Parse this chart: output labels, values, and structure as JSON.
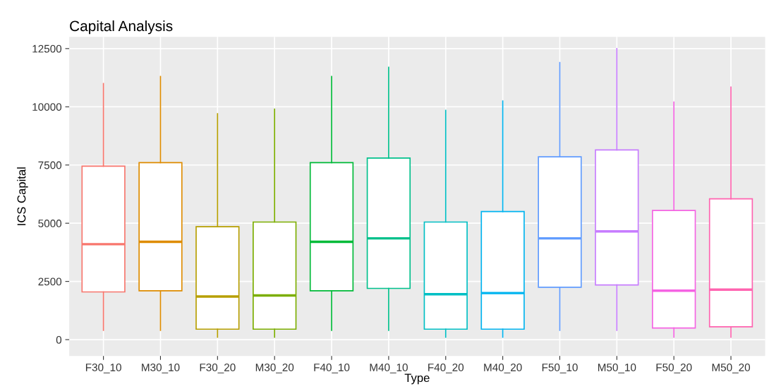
{
  "chart_data": {
    "type": "box",
    "title": "Capital Analysis",
    "xlabel": "Type",
    "ylabel": "ICS Capital",
    "categories": [
      "F30_10",
      "M30_10",
      "F30_20",
      "M30_20",
      "F40_10",
      "M40_10",
      "F40_20",
      "M40_20",
      "F50_10",
      "M50_10",
      "F50_20",
      "M50_20"
    ],
    "colors": [
      "#f8766d",
      "#de8c00",
      "#b79f00",
      "#7cae00",
      "#00ba38",
      "#00c08b",
      "#00bfc4",
      "#00b4f0",
      "#619cff",
      "#c77cff",
      "#f564e3",
      "#ff64b0"
    ],
    "boxes": [
      {
        "low": 400,
        "q1": 2050,
        "median": 4100,
        "q3": 7450,
        "high": 11000
      },
      {
        "low": 400,
        "q1": 2100,
        "median": 4200,
        "q3": 7600,
        "high": 11300
      },
      {
        "low": 100,
        "q1": 450,
        "median": 1850,
        "q3": 4850,
        "high": 9700
      },
      {
        "low": 100,
        "q1": 450,
        "median": 1900,
        "q3": 5050,
        "high": 9900
      },
      {
        "low": 400,
        "q1": 2100,
        "median": 4200,
        "q3": 7600,
        "high": 11300
      },
      {
        "low": 400,
        "q1": 2200,
        "median": 4350,
        "q3": 7800,
        "high": 11700
      },
      {
        "low": 100,
        "q1": 450,
        "median": 1950,
        "q3": 5050,
        "high": 9850
      },
      {
        "low": 100,
        "q1": 450,
        "median": 2000,
        "q3": 5500,
        "high": 10250
      },
      {
        "low": 400,
        "q1": 2250,
        "median": 4350,
        "q3": 7850,
        "high": 11900
      },
      {
        "low": 400,
        "q1": 2350,
        "median": 4650,
        "q3": 8150,
        "high": 12500
      },
      {
        "low": 100,
        "q1": 500,
        "median": 2100,
        "q3": 5550,
        "high": 10200
      },
      {
        "low": 100,
        "q1": 550,
        "median": 2150,
        "q3": 6050,
        "high": 10850
      }
    ],
    "ylim": [
      -700,
      13000
    ],
    "yticks": [
      0,
      2500,
      5000,
      7500,
      10000,
      12500
    ],
    "grid": true
  }
}
